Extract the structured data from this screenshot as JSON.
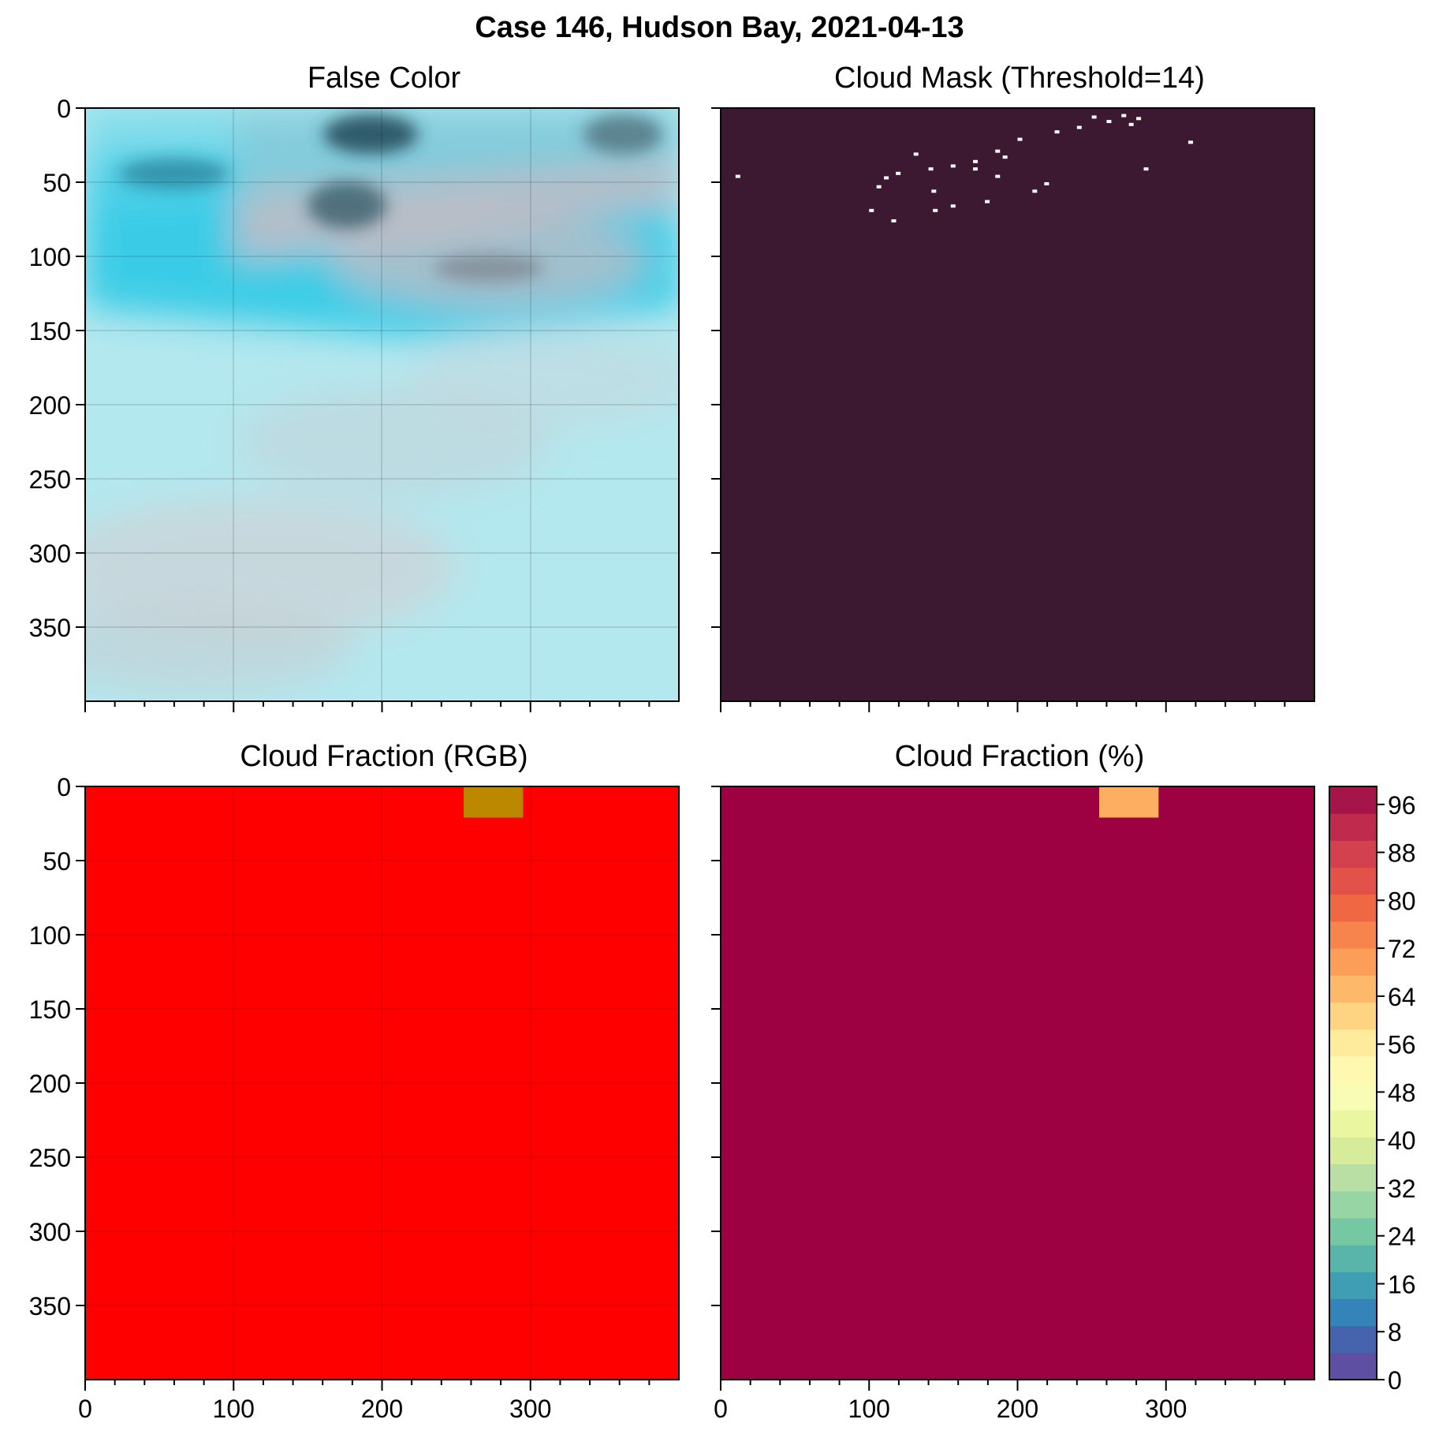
{
  "figure": {
    "title": "Case 146, Hudson Bay, 2021-04-13"
  },
  "colors": {
    "ice": "#b4e8ef",
    "ice_dark": "#2ec9e6",
    "cloud": "#d2d6dc",
    "mask_bg": "#3c1831",
    "mask_cloud": "#ffffff",
    "rgb_bg": "#ff0000",
    "rgb_partial": "#bb8800",
    "pct_bg": "#9e0142",
    "pct_partial": "#fdae61"
  },
  "panels": [
    {
      "title": "False Color",
      "type": "image"
    },
    {
      "title": "Cloud Mask (Threshold=14)",
      "type": "image"
    },
    {
      "title": "Cloud Fraction (RGB)",
      "type": "heatmap"
    },
    {
      "title": "Cloud Fraction (%)",
      "type": "heatmap"
    }
  ],
  "colorbar": {
    "ticks": [
      "0",
      "8",
      "16",
      "24",
      "32",
      "40",
      "48",
      "56",
      "64",
      "72",
      "80",
      "88",
      "96"
    ],
    "colors": [
      "#5e4fa2",
      "#4664ae",
      "#3484ba",
      "#3f9db4",
      "#59b5a9",
      "#76c8a4",
      "#98d5a4",
      "#badfa4",
      "#d6ec9b",
      "#ebf7a0",
      "#f8fcb4",
      "#fff8b0",
      "#feeb9c",
      "#fed382",
      "#fdb869",
      "#fc9d58",
      "#f7834d",
      "#f06744",
      "#e25249",
      "#d3404e",
      "#bf2a4d",
      "#a5154a"
    ]
  },
  "chart_data": [
    {
      "type": "image",
      "title": "False Color",
      "xlim": [
        0,
        400
      ],
      "ylim": [
        400,
        0
      ],
      "xticks": [
        "0",
        "100",
        "200",
        "300"
      ],
      "yticks": [
        "0",
        "50",
        "100",
        "150",
        "200",
        "250",
        "300",
        "350"
      ],
      "grid": true
    },
    {
      "type": "image",
      "title": "Cloud Mask (Threshold=14)",
      "xlim": [
        0,
        400
      ],
      "ylim": [
        400,
        0
      ],
      "grid": false,
      "cloud_pixels": [
        [
          250,
          5
        ],
        [
          260,
          8
        ],
        [
          270,
          4
        ],
        [
          280,
          6
        ],
        [
          275,
          10
        ],
        [
          240,
          12
        ],
        [
          225,
          15
        ],
        [
          200,
          20
        ],
        [
          185,
          28
        ],
        [
          190,
          32
        ],
        [
          170,
          35
        ],
        [
          155,
          38
        ],
        [
          140,
          40
        ],
        [
          130,
          30
        ],
        [
          118,
          43
        ],
        [
          110,
          46
        ],
        [
          10,
          45
        ],
        [
          105,
          52
        ],
        [
          218,
          50
        ],
        [
          210,
          55
        ],
        [
          178,
          62
        ],
        [
          155,
          65
        ],
        [
          143,
          68
        ],
        [
          115,
          75
        ],
        [
          100,
          68
        ],
        [
          285,
          40
        ],
        [
          315,
          22
        ],
        [
          185,
          45
        ],
        [
          142,
          55
        ],
        [
          170,
          40
        ]
      ]
    },
    {
      "type": "heatmap",
      "title": "Cloud Fraction (RGB)",
      "xlim": [
        0,
        400
      ],
      "ylim": [
        400,
        0
      ],
      "xticks": [
        "0",
        "100",
        "200",
        "300"
      ],
      "yticks": [
        "0",
        "50",
        "100",
        "150",
        "200",
        "250",
        "300",
        "350"
      ],
      "cells": [
        {
          "x": [
            255,
            295
          ],
          "y": [
            0,
            21
          ],
          "value": "partial"
        }
      ]
    },
    {
      "type": "heatmap",
      "title": "Cloud Fraction (%)",
      "xlim": [
        0,
        400
      ],
      "ylim": [
        400,
        0
      ],
      "xticks": [
        "0",
        "100",
        "200",
        "300"
      ],
      "vmin": 0,
      "vmax": 100,
      "cells": [
        {
          "x": [
            255,
            295
          ],
          "y": [
            0,
            21
          ],
          "value": 70
        }
      ],
      "background_value": 100
    }
  ]
}
